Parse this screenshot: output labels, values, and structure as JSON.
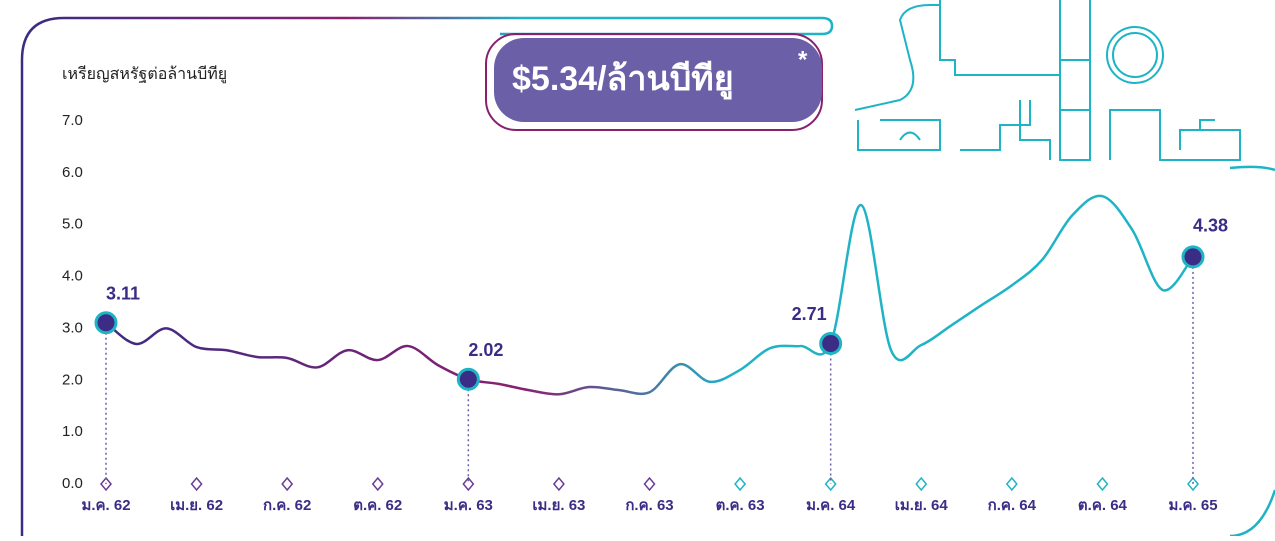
{
  "chart_data": {
    "type": "line",
    "y_label": "เหรียญสหรัฐต่อล้านบีทียู",
    "annotation": "$5.34/ล้านบีทียู",
    "annotation_note": "*",
    "categories": [
      "ม.ค. 62",
      null,
      null,
      "เม.ย. 62",
      null,
      null,
      "ก.ค. 62",
      null,
      null,
      "ต.ค. 62",
      null,
      null,
      "ม.ค. 63",
      null,
      null,
      "เม.ย. 63",
      null,
      null,
      "ก.ค. 63",
      null,
      null,
      "ต.ค. 63",
      null,
      null,
      "ม.ค. 64",
      null,
      null,
      "เม.ย. 64",
      null,
      null,
      "ก.ค. 64",
      null,
      null,
      "ต.ค. 64",
      null,
      null,
      "ม.ค. 65"
    ],
    "series": [
      {
        "colors": [
          "#3b2c85",
          "#8a1f6e",
          "#1eb4c6"
        ],
        "values": [
          3.11,
          2.7,
          3.0,
          2.64,
          2.58,
          2.45,
          2.43,
          2.25,
          2.58,
          2.39,
          2.66,
          2.29,
          2.02,
          1.93,
          1.81,
          1.73,
          1.87,
          1.81,
          1.77,
          2.31,
          1.97,
          2.2,
          2.62,
          2.66,
          2.71,
          5.38,
          2.58,
          2.68,
          3.06,
          3.45,
          3.83,
          4.32,
          5.18,
          5.55,
          4.89,
          3.74,
          4.38
        ]
      }
    ],
    "highlights": [
      0,
      12,
      24,
      36
    ],
    "ylim": [
      0,
      7
    ],
    "yticks": [
      {
        "value": 0,
        "label": "0.0"
      },
      {
        "value": 1,
        "label": "1.0"
      },
      {
        "value": 2,
        "label": "2.0"
      },
      {
        "value": 3,
        "label": "3.0"
      },
      {
        "value": 4,
        "label": "4.0"
      },
      {
        "value": 5,
        "label": "5.0"
      },
      {
        "value": 6,
        "label": "6.0"
      },
      {
        "value": 7,
        "label": "7.0"
      }
    ],
    "label_color": "#3b2c85"
  }
}
